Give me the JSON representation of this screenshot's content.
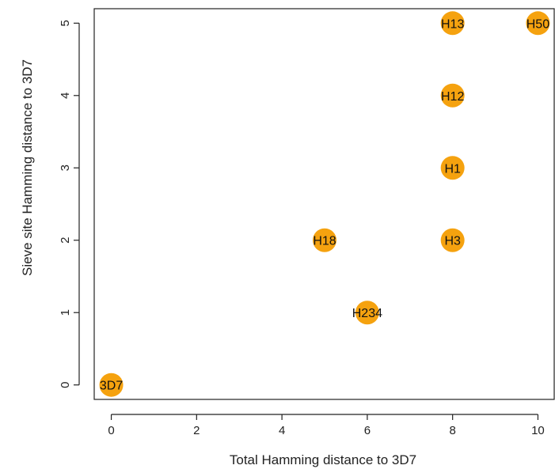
{
  "colors": {
    "point": "#F5A20F",
    "axis": "#222222",
    "text": "#111111"
  },
  "chart_data": {
    "type": "scatter",
    "title": "",
    "xlabel": "Total Hamming distance to 3D7",
    "ylabel": "Sieve site Hamming distance to 3D7",
    "xlim": [
      -0.4,
      10.4
    ],
    "ylim": [
      -0.2,
      5.2
    ],
    "xticks": [
      0,
      2,
      4,
      6,
      8,
      10
    ],
    "yticks": [
      0,
      1,
      2,
      3,
      4,
      5
    ],
    "xtick_labels": [
      "0",
      "2",
      "4",
      "6",
      "8",
      "10"
    ],
    "ytick_labels": [
      "0",
      "1",
      "2",
      "3",
      "4",
      "5"
    ],
    "grid": false,
    "points": [
      {
        "label": "3D7",
        "x": 0,
        "y": 0
      },
      {
        "label": "H234",
        "x": 6,
        "y": 1
      },
      {
        "label": "H18",
        "x": 5,
        "y": 2
      },
      {
        "label": "H3",
        "x": 8,
        "y": 2
      },
      {
        "label": "H1",
        "x": 8,
        "y": 3
      },
      {
        "label": "H12",
        "x": 8,
        "y": 4
      },
      {
        "label": "H13",
        "x": 8,
        "y": 5
      },
      {
        "label": "H50",
        "x": 10,
        "y": 5
      }
    ]
  }
}
